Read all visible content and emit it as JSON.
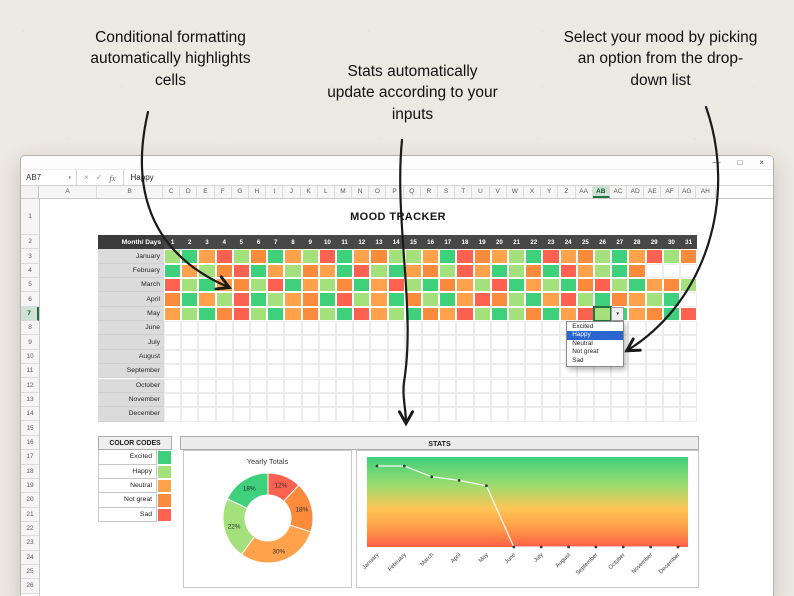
{
  "annotations": {
    "left": "Conditional formatting automatically highlights cells",
    "middle": "Stats automatically update according to your inputs",
    "right": "Select your mood by picking an option from the drop-down list"
  },
  "window": {
    "controls": {
      "minimize": "—",
      "maximize": "□",
      "close": "×"
    },
    "name_box": "AB7",
    "name_box_caret": "▾",
    "cancel": "×",
    "enter": "✓",
    "fx": "fx",
    "formula_value": "Happy"
  },
  "sheet": {
    "title": "MOOD TRACKER",
    "corner_label": "Month/ Days",
    "columns": [
      "A",
      "B",
      "C",
      "D",
      "E",
      "F",
      "G",
      "H",
      "I",
      "J",
      "K",
      "L",
      "M",
      "N",
      "O",
      "P",
      "Q",
      "R",
      "S",
      "T",
      "U",
      "V",
      "W",
      "X",
      "Y",
      "Z",
      "AA",
      "AB",
      "AC",
      "AD",
      "AE",
      "AF",
      "AG",
      "AH"
    ],
    "selected_column": "AB",
    "rows": 26,
    "selected_row": 7,
    "days": 31,
    "months": [
      "January",
      "February",
      "March",
      "April",
      "May",
      "June",
      "July",
      "August",
      "September",
      "October",
      "November",
      "December"
    ],
    "mood_cells": {
      "January": "HENSHGENHSENGHHNESGNHESNGHENSHG",
      "February": "ENHGSENHGNESHENGHSNEHGESNHEG",
      "March": "SHENGHSENHGENSHEGNHSENHEGSHENGH",
      "April": "GENHSEHNGESHNEGHENSGHENSHEGNHE",
      "May": "NHEGSHENGHESNHEGNSHEHGENSHENGES",
      "June": "",
      "July": "",
      "August": "",
      "September": "",
      "October": "",
      "November": "",
      "December": ""
    },
    "selected_cell": {
      "column": "AB",
      "row": 7,
      "month": "May",
      "day": 26,
      "value": "Happy"
    }
  },
  "moods": {
    "E": {
      "label": "Excited",
      "color": "#3FD07C"
    },
    "H": {
      "label": "Happy",
      "color": "#A4E07C"
    },
    "N": {
      "label": "Neutral",
      "color": "#FFA24B"
    },
    "G": {
      "label": "Not great",
      "color": "#FA8A3C"
    },
    "S": {
      "label": "Sad",
      "color": "#FF6150"
    }
  },
  "legend": {
    "title": "COLOR CODES",
    "order": [
      "E",
      "H",
      "N",
      "G",
      "S"
    ]
  },
  "dropdown": {
    "options": [
      "Excited",
      "Happy",
      "Neutral",
      "Not great",
      "Sad"
    ],
    "highlighted": "Happy",
    "caret": "▼"
  },
  "stats": {
    "title": "STATS"
  },
  "chart_data": [
    {
      "type": "pie",
      "donut": true,
      "title": "Yearly Totals",
      "labels": [
        "Sad",
        "Not great",
        "Neutral",
        "Happy",
        "Excited"
      ],
      "values": [
        12,
        18,
        30,
        22,
        18
      ],
      "colors": [
        "#FF6150",
        "#FA8A3C",
        "#FFA24B",
        "#A4E07C",
        "#3FD07C"
      ],
      "legend_position": "none"
    },
    {
      "type": "line",
      "x": [
        "January",
        "February",
        "March",
        "April",
        "May",
        "June",
        "July",
        "August",
        "September",
        "October",
        "November",
        "December"
      ],
      "values": [
        4.5,
        4.5,
        3.9,
        3.7,
        3.4,
        0,
        0,
        0,
        0,
        0,
        0,
        0
      ],
      "ylim": [
        0,
        5
      ],
      "grid": false,
      "background_gradient": [
        "#3FD07C",
        "#9EDC6E",
        "#FFC455",
        "#FF9A48",
        "#FF5F48"
      ],
      "line_color": "#FAFAFA",
      "point_color": "#3A3A3A"
    }
  ]
}
